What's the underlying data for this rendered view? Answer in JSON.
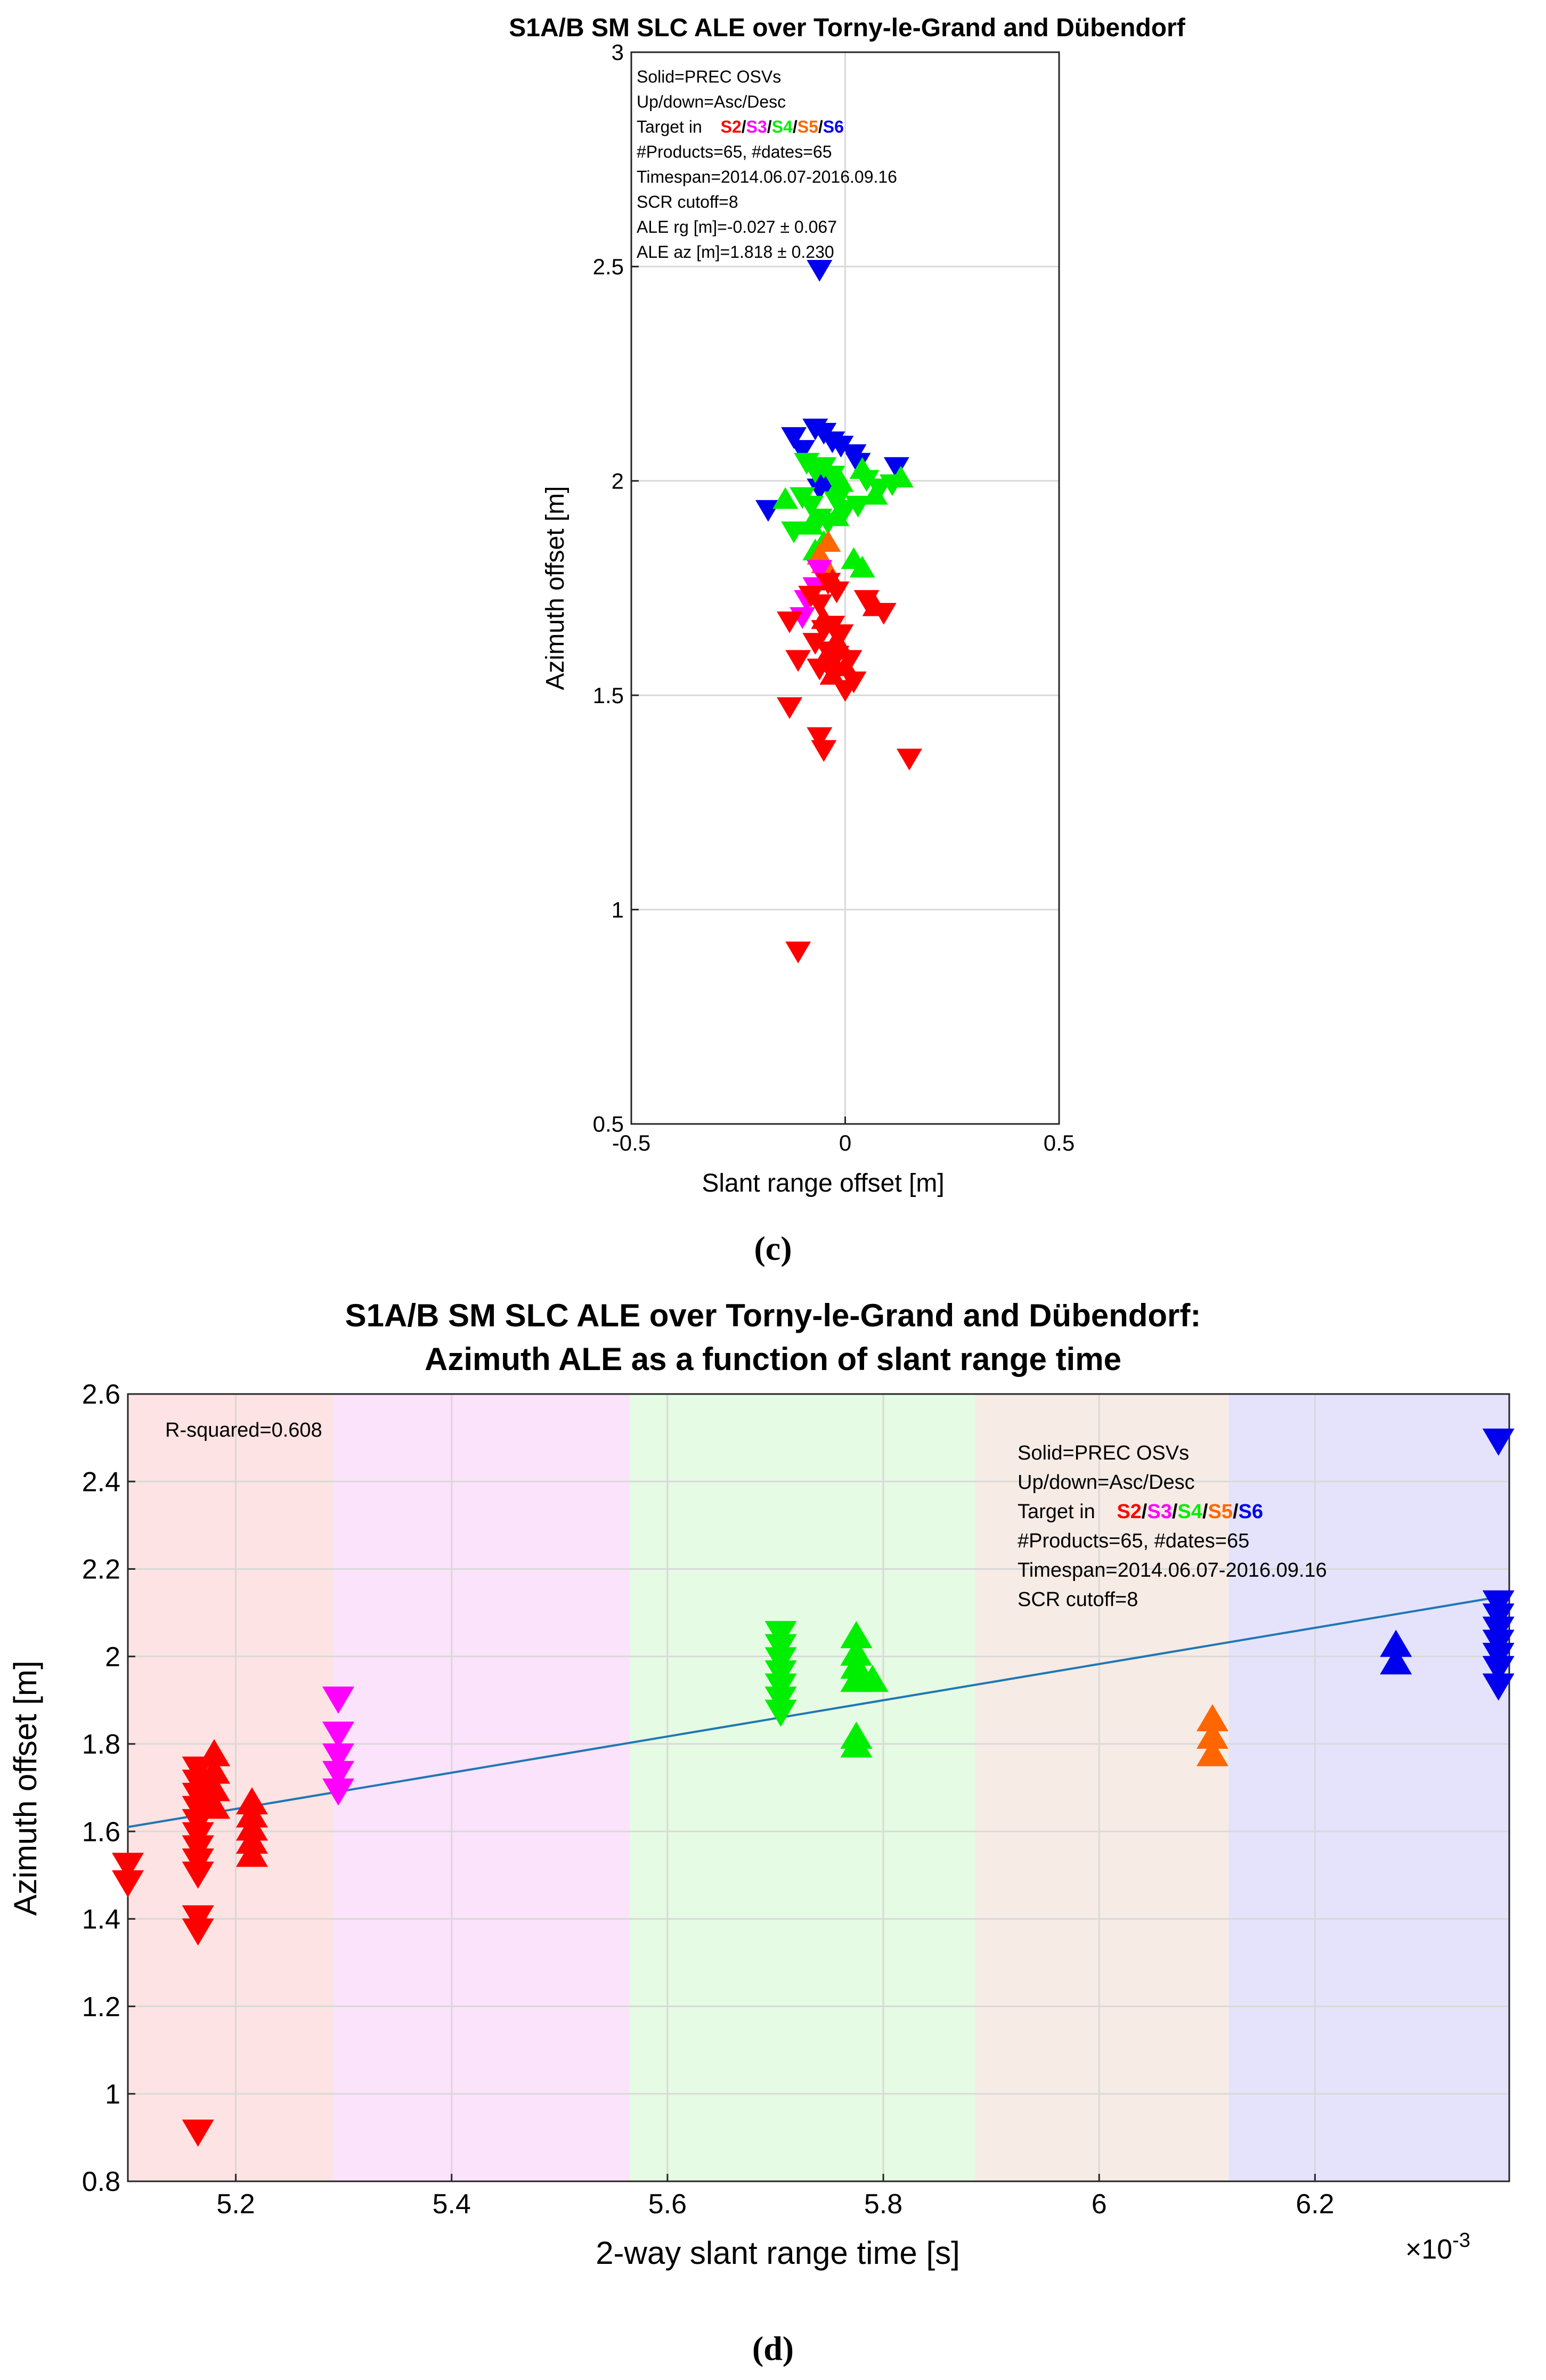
{
  "colors": {
    "S2": "#ff0000",
    "S3": "#ff00ff",
    "S4": "#00ee00",
    "S5": "#ff6600",
    "S6": "#0000ee",
    "fit_line": "#1f77b4"
  },
  "chart_data": [
    {
      "id": "c",
      "type": "scatter",
      "caption": "(c)",
      "title": "S1A/B SM SLC ALE over Torny-le-Grand and Dübendorf",
      "xlabel": "Slant range offset [m]",
      "ylabel": "Azimuth offset [m]",
      "xlim": [
        -0.5,
        0.5
      ],
      "ylim": [
        0.5,
        3
      ],
      "xticks": [
        -0.5,
        0,
        0.5
      ],
      "xtick_labels": [
        "-0.5",
        "0",
        "0.5"
      ],
      "yticks": [
        0.5,
        1,
        1.5,
        2,
        2.5,
        3
      ],
      "ytick_labels": [
        "0.5",
        "1",
        "1.5",
        "2",
        "2.5",
        "3"
      ],
      "grid": true,
      "annotation": {
        "lines": [
          "Solid=PREC OSVs",
          "Up/down=Asc/Desc",
          "#Products=65, #dates=65",
          "Timespan=2014.06.07-2016.09.16",
          "SCR cutoff=8",
          "ALE rg [m]=-0.027 ± 0.067",
          "ALE az [m]=1.818 ± 0.230"
        ],
        "target_prefix": "Target in",
        "sep": "/",
        "swaths": [
          "S2",
          "S3",
          "S4",
          "S5",
          "S6"
        ]
      },
      "points": [
        {
          "x": -0.06,
          "y": 2.49,
          "s": "S6",
          "m": "down"
        },
        {
          "x": -0.12,
          "y": 2.1,
          "s": "S6",
          "m": "down"
        },
        {
          "x": -0.07,
          "y": 2.12,
          "s": "S6",
          "m": "down"
        },
        {
          "x": -0.05,
          "y": 2.11,
          "s": "S6",
          "m": "down"
        },
        {
          "x": -0.03,
          "y": 2.09,
          "s": "S6",
          "m": "down"
        },
        {
          "x": -0.1,
          "y": 2.07,
          "s": "S6",
          "m": "down"
        },
        {
          "x": -0.01,
          "y": 2.08,
          "s": "S6",
          "m": "down"
        },
        {
          "x": 0.02,
          "y": 2.06,
          "s": "S6",
          "m": "down"
        },
        {
          "x": 0.03,
          "y": 2.04,
          "s": "S6",
          "m": "down"
        },
        {
          "x": 0.12,
          "y": 2.03,
          "s": "S6",
          "m": "down"
        },
        {
          "x": -0.18,
          "y": 1.93,
          "s": "S6",
          "m": "down"
        },
        {
          "x": -0.04,
          "y": 1.99,
          "s": "S6",
          "m": "down"
        },
        {
          "x": -0.06,
          "y": 1.98,
          "s": "S6",
          "m": "down"
        },
        {
          "x": -0.09,
          "y": 2.04,
          "s": "S4",
          "m": "down"
        },
        {
          "x": -0.07,
          "y": 2.02,
          "s": "S4",
          "m": "down"
        },
        {
          "x": -0.05,
          "y": 2.03,
          "s": "S4",
          "m": "down"
        },
        {
          "x": -0.03,
          "y": 2.01,
          "s": "S4",
          "m": "down"
        },
        {
          "x": 0.05,
          "y": 2.0,
          "s": "S4",
          "m": "down"
        },
        {
          "x": 0.08,
          "y": 1.98,
          "s": "S4",
          "m": "down"
        },
        {
          "x": 0.11,
          "y": 1.99,
          "s": "S4",
          "m": "down"
        },
        {
          "x": -0.1,
          "y": 1.96,
          "s": "S4",
          "m": "down"
        },
        {
          "x": -0.08,
          "y": 1.94,
          "s": "S4",
          "m": "down"
        },
        {
          "x": -0.02,
          "y": 1.95,
          "s": "S4",
          "m": "down"
        },
        {
          "x": 0.0,
          "y": 1.93,
          "s": "S4",
          "m": "down"
        },
        {
          "x": 0.03,
          "y": 1.94,
          "s": "S4",
          "m": "down"
        },
        {
          "x": -0.06,
          "y": 1.91,
          "s": "S4",
          "m": "down"
        },
        {
          "x": -0.04,
          "y": 1.9,
          "s": "S4",
          "m": "down"
        },
        {
          "x": -0.12,
          "y": 1.88,
          "s": "S4",
          "m": "down"
        },
        {
          "x": 0.13,
          "y": 2.01,
          "s": "S4",
          "m": "up"
        },
        {
          "x": 0.04,
          "y": 2.03,
          "s": "S4",
          "m": "up"
        },
        {
          "x": -0.01,
          "y": 2.0,
          "s": "S4",
          "m": "up"
        },
        {
          "x": 0.07,
          "y": 1.97,
          "s": "S4",
          "m": "up"
        },
        {
          "x": -0.14,
          "y": 1.96,
          "s": "S4",
          "m": "up"
        },
        {
          "x": -0.02,
          "y": 1.92,
          "s": "S4",
          "m": "up"
        },
        {
          "x": -0.08,
          "y": 1.9,
          "s": "S4",
          "m": "up"
        },
        {
          "x": -0.05,
          "y": 1.86,
          "s": "S4",
          "m": "up"
        },
        {
          "x": 0.02,
          "y": 1.82,
          "s": "S4",
          "m": "up"
        },
        {
          "x": 0.04,
          "y": 1.8,
          "s": "S4",
          "m": "up"
        },
        {
          "x": -0.07,
          "y": 1.84,
          "s": "S4",
          "m": "up"
        },
        {
          "x": -0.04,
          "y": 1.86,
          "s": "S5",
          "m": "up"
        },
        {
          "x": -0.06,
          "y": 1.83,
          "s": "S5",
          "m": "up"
        },
        {
          "x": -0.05,
          "y": 1.81,
          "s": "S5",
          "m": "up"
        },
        {
          "x": -0.06,
          "y": 1.79,
          "s": "S3",
          "m": "down"
        },
        {
          "x": -0.07,
          "y": 1.75,
          "s": "S3",
          "m": "down"
        },
        {
          "x": -0.09,
          "y": 1.72,
          "s": "S3",
          "m": "down"
        },
        {
          "x": -0.1,
          "y": 1.68,
          "s": "S3",
          "m": "down"
        },
        {
          "x": -0.04,
          "y": 1.76,
          "s": "S2",
          "m": "down"
        },
        {
          "x": -0.02,
          "y": 1.74,
          "s": "S2",
          "m": "down"
        },
        {
          "x": -0.08,
          "y": 1.73,
          "s": "S2",
          "m": "down"
        },
        {
          "x": -0.06,
          "y": 1.71,
          "s": "S2",
          "m": "down"
        },
        {
          "x": 0.05,
          "y": 1.72,
          "s": "S2",
          "m": "down"
        },
        {
          "x": 0.09,
          "y": 1.69,
          "s": "S2",
          "m": "down"
        },
        {
          "x": -0.13,
          "y": 1.67,
          "s": "S2",
          "m": "down"
        },
        {
          "x": -0.05,
          "y": 1.65,
          "s": "S2",
          "m": "down"
        },
        {
          "x": -0.03,
          "y": 1.66,
          "s": "S2",
          "m": "down"
        },
        {
          "x": -0.01,
          "y": 1.64,
          "s": "S2",
          "m": "down"
        },
        {
          "x": -0.07,
          "y": 1.62,
          "s": "S2",
          "m": "down"
        },
        {
          "x": -0.04,
          "y": 1.6,
          "s": "S2",
          "m": "down"
        },
        {
          "x": -0.02,
          "y": 1.59,
          "s": "S2",
          "m": "down"
        },
        {
          "x": -0.11,
          "y": 1.58,
          "s": "S2",
          "m": "down"
        },
        {
          "x": 0.01,
          "y": 1.58,
          "s": "S2",
          "m": "down"
        },
        {
          "x": -0.06,
          "y": 1.56,
          "s": "S2",
          "m": "down"
        },
        {
          "x": -0.03,
          "y": 1.55,
          "s": "S2",
          "m": "down"
        },
        {
          "x": 0.02,
          "y": 1.53,
          "s": "S2",
          "m": "down"
        },
        {
          "x": 0.0,
          "y": 1.51,
          "s": "S2",
          "m": "down"
        },
        {
          "x": -0.13,
          "y": 1.47,
          "s": "S2",
          "m": "down"
        },
        {
          "x": -0.06,
          "y": 1.4,
          "s": "S2",
          "m": "down"
        },
        {
          "x": -0.05,
          "y": 1.37,
          "s": "S2",
          "m": "down"
        },
        {
          "x": 0.15,
          "y": 1.35,
          "s": "S2",
          "m": "down"
        },
        {
          "x": -0.11,
          "y": 0.9,
          "s": "S2",
          "m": "down"
        },
        {
          "x": -0.03,
          "y": 1.77,
          "s": "S2",
          "m": "up"
        },
        {
          "x": 0.07,
          "y": 1.71,
          "s": "S2",
          "m": "up"
        },
        {
          "x": -0.05,
          "y": 1.68,
          "s": "S2",
          "m": "up"
        },
        {
          "x": -0.02,
          "y": 1.63,
          "s": "S2",
          "m": "up"
        },
        {
          "x": -0.04,
          "y": 1.6,
          "s": "S2",
          "m": "up"
        },
        {
          "x": 0.0,
          "y": 1.57,
          "s": "S2",
          "m": "up"
        },
        {
          "x": -0.03,
          "y": 1.55,
          "s": "S2",
          "m": "up"
        }
      ]
    },
    {
      "id": "d",
      "type": "scatter",
      "caption": "(d)",
      "title": [
        "S1A/B SM SLC ALE over Torny-le-Grand and Dübendorf:",
        "Azimuth ALE as a function of slant range time"
      ],
      "xlabel": "2-way slant range time [s]",
      "x_exponent": "×10",
      "x_exponent_power": "-3",
      "ylabel": "Azimuth offset [m]",
      "xlim": [
        5.1,
        6.38
      ],
      "ylim": [
        0.8,
        2.6
      ],
      "xticks": [
        5.2,
        5.4,
        5.6,
        5.8,
        6.0,
        6.2
      ],
      "xtick_labels": [
        "5.2",
        "5.4",
        "5.6",
        "5.8",
        "6",
        "6.2"
      ],
      "yticks": [
        0.8,
        1.0,
        1.2,
        1.4,
        1.6,
        1.8,
        2.0,
        2.2,
        2.4,
        2.6
      ],
      "ytick_labels": [
        "0.8",
        "1",
        "1.2",
        "1.4",
        "1.6",
        "1.8",
        "2",
        "2.2",
        "2.4",
        "2.6"
      ],
      "grid": true,
      "r_squared": "R-squared=0.608",
      "fit_line": {
        "x": [
          5.1,
          6.38
        ],
        "y": [
          1.61,
          2.14
        ]
      },
      "swath_bands": [
        {
          "s": "S2",
          "x0": 5.1,
          "x1": 5.29,
          "color": "#fde3e3"
        },
        {
          "s": "S3",
          "x0": 5.29,
          "x1": 5.565,
          "color": "#fbe3fb"
        },
        {
          "s": "S4",
          "x0": 5.565,
          "x1": 5.885,
          "color": "#e5fbe3"
        },
        {
          "s": "S5",
          "x0": 5.885,
          "x1": 6.12,
          "color": "#f7ebe5"
        },
        {
          "s": "S6",
          "x0": 6.12,
          "x1": 6.38,
          "color": "#e4e3fb"
        }
      ],
      "annotation": {
        "lines": [
          "Solid=PREC OSVs",
          "Up/down=Asc/Desc",
          "#Products=65, #dates=65",
          "Timespan=2014.06.07-2016.09.16",
          "SCR cutoff=8"
        ],
        "target_prefix": "Target in",
        "sep": "/",
        "swaths": [
          "S2",
          "S3",
          "S4",
          "S5",
          "S6"
        ]
      },
      "points": [
        {
          "x": 5.1,
          "y": 1.52,
          "s": "S2",
          "m": "down"
        },
        {
          "x": 5.1,
          "y": 1.48,
          "s": "S2",
          "m": "down"
        },
        {
          "x": 5.165,
          "y": 1.74,
          "s": "S2",
          "m": "down"
        },
        {
          "x": 5.165,
          "y": 1.71,
          "s": "S2",
          "m": "down"
        },
        {
          "x": 5.165,
          "y": 1.68,
          "s": "S2",
          "m": "down"
        },
        {
          "x": 5.165,
          "y": 1.65,
          "s": "S2",
          "m": "down"
        },
        {
          "x": 5.165,
          "y": 1.62,
          "s": "S2",
          "m": "down"
        },
        {
          "x": 5.165,
          "y": 1.59,
          "s": "S2",
          "m": "down"
        },
        {
          "x": 5.165,
          "y": 1.56,
          "s": "S2",
          "m": "down"
        },
        {
          "x": 5.165,
          "y": 1.53,
          "s": "S2",
          "m": "down"
        },
        {
          "x": 5.165,
          "y": 1.5,
          "s": "S2",
          "m": "down"
        },
        {
          "x": 5.165,
          "y": 1.4,
          "s": "S2",
          "m": "down"
        },
        {
          "x": 5.165,
          "y": 1.37,
          "s": "S2",
          "m": "down"
        },
        {
          "x": 5.165,
          "y": 0.91,
          "s": "S2",
          "m": "down"
        },
        {
          "x": 5.18,
          "y": 1.78,
          "s": "S2",
          "m": "up"
        },
        {
          "x": 5.18,
          "y": 1.74,
          "s": "S2",
          "m": "up"
        },
        {
          "x": 5.18,
          "y": 1.7,
          "s": "S2",
          "m": "up"
        },
        {
          "x": 5.18,
          "y": 1.66,
          "s": "S2",
          "m": "up"
        },
        {
          "x": 5.215,
          "y": 1.67,
          "s": "S2",
          "m": "up"
        },
        {
          "x": 5.215,
          "y": 1.64,
          "s": "S2",
          "m": "up"
        },
        {
          "x": 5.215,
          "y": 1.61,
          "s": "S2",
          "m": "up"
        },
        {
          "x": 5.215,
          "y": 1.58,
          "s": "S2",
          "m": "up"
        },
        {
          "x": 5.215,
          "y": 1.55,
          "s": "S2",
          "m": "up"
        },
        {
          "x": 5.295,
          "y": 1.9,
          "s": "S3",
          "m": "down"
        },
        {
          "x": 5.295,
          "y": 1.82,
          "s": "S3",
          "m": "down"
        },
        {
          "x": 5.295,
          "y": 1.77,
          "s": "S3",
          "m": "down"
        },
        {
          "x": 5.295,
          "y": 1.73,
          "s": "S3",
          "m": "down"
        },
        {
          "x": 5.295,
          "y": 1.69,
          "s": "S3",
          "m": "down"
        },
        {
          "x": 5.705,
          "y": 2.05,
          "s": "S4",
          "m": "down"
        },
        {
          "x": 5.705,
          "y": 2.02,
          "s": "S4",
          "m": "down"
        },
        {
          "x": 5.705,
          "y": 1.99,
          "s": "S4",
          "m": "down"
        },
        {
          "x": 5.705,
          "y": 1.96,
          "s": "S4",
          "m": "down"
        },
        {
          "x": 5.705,
          "y": 1.93,
          "s": "S4",
          "m": "down"
        },
        {
          "x": 5.705,
          "y": 1.9,
          "s": "S4",
          "m": "down"
        },
        {
          "x": 5.705,
          "y": 1.87,
          "s": "S4",
          "m": "down"
        },
        {
          "x": 5.775,
          "y": 2.05,
          "s": "S4",
          "m": "up"
        },
        {
          "x": 5.775,
          "y": 2.01,
          "s": "S4",
          "m": "up"
        },
        {
          "x": 5.775,
          "y": 1.98,
          "s": "S4",
          "m": "up"
        },
        {
          "x": 5.775,
          "y": 1.95,
          "s": "S4",
          "m": "up"
        },
        {
          "x": 5.79,
          "y": 1.95,
          "s": "S4",
          "m": "up"
        },
        {
          "x": 5.775,
          "y": 1.82,
          "s": "S4",
          "m": "up"
        },
        {
          "x": 5.775,
          "y": 1.8,
          "s": "S4",
          "m": "up"
        },
        {
          "x": 6.105,
          "y": 1.86,
          "s": "S5",
          "m": "up"
        },
        {
          "x": 6.105,
          "y": 1.82,
          "s": "S5",
          "m": "up"
        },
        {
          "x": 6.105,
          "y": 1.78,
          "s": "S5",
          "m": "up"
        },
        {
          "x": 6.275,
          "y": 2.03,
          "s": "S6",
          "m": "up"
        },
        {
          "x": 6.275,
          "y": 1.99,
          "s": "S6",
          "m": "up"
        },
        {
          "x": 6.37,
          "y": 2.49,
          "s": "S6",
          "m": "down"
        },
        {
          "x": 6.37,
          "y": 2.12,
          "s": "S6",
          "m": "down"
        },
        {
          "x": 6.37,
          "y": 2.09,
          "s": "S6",
          "m": "down"
        },
        {
          "x": 6.37,
          "y": 2.06,
          "s": "S6",
          "m": "down"
        },
        {
          "x": 6.37,
          "y": 2.03,
          "s": "S6",
          "m": "down"
        },
        {
          "x": 6.37,
          "y": 2.0,
          "s": "S6",
          "m": "down"
        },
        {
          "x": 6.37,
          "y": 1.97,
          "s": "S6",
          "m": "down"
        },
        {
          "x": 6.37,
          "y": 1.93,
          "s": "S6",
          "m": "down"
        }
      ]
    }
  ]
}
